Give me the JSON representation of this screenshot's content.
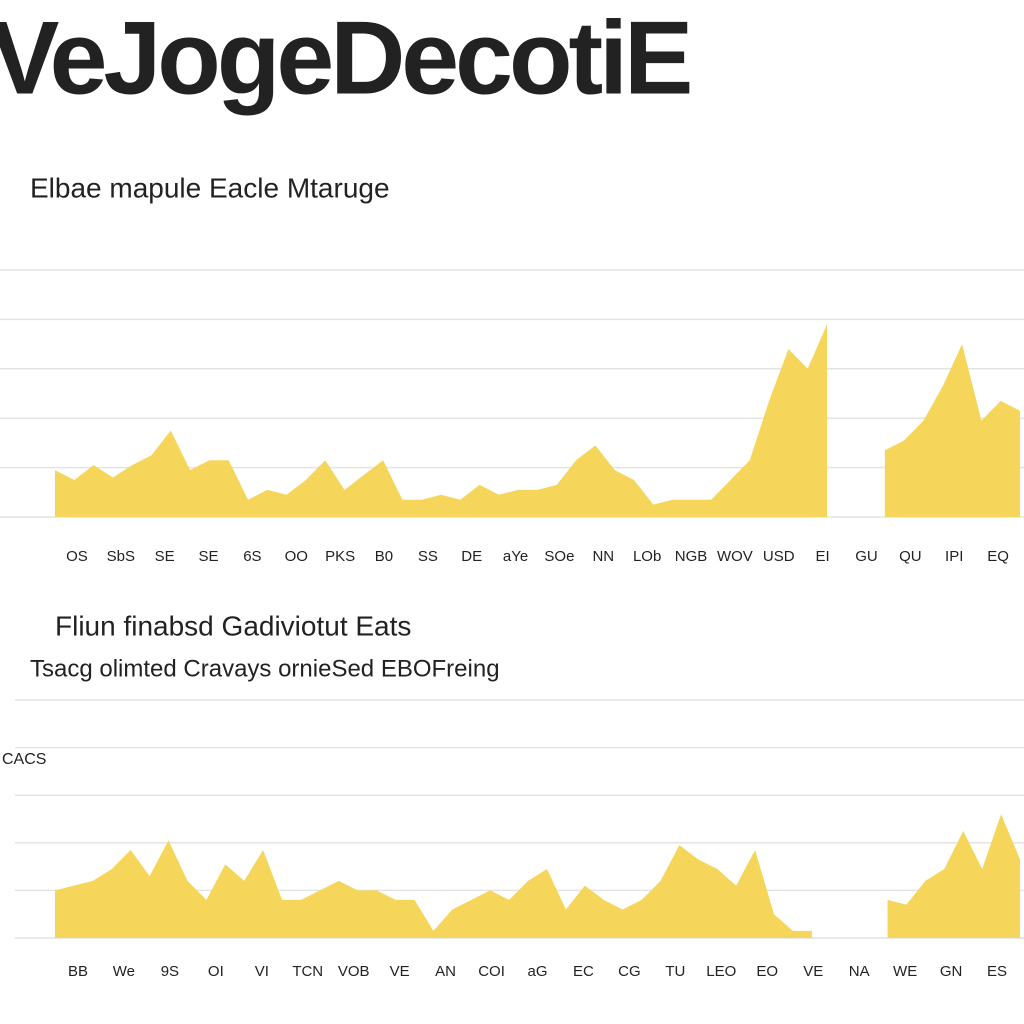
{
  "title": "VeJogeDecotiE",
  "chart_data": [
    {
      "type": "area",
      "title": "Elbae mapule Eacle Mtaruge",
      "color": "#f5d55a",
      "grid": true,
      "ylim": [
        0,
        100
      ],
      "yticks": [
        0,
        20,
        40,
        60,
        80,
        100
      ],
      "values": [
        19,
        15,
        21,
        16,
        21,
        25,
        35,
        19,
        23,
        23,
        7,
        11,
        9,
        15,
        23,
        11,
        17,
        23,
        7,
        7,
        9,
        7,
        13,
        9,
        11,
        11,
        13,
        23,
        29,
        19,
        15,
        5,
        7,
        7,
        7,
        15,
        23,
        47,
        68,
        60,
        78,
        null,
        null,
        27,
        31,
        39,
        53,
        70,
        39,
        47,
        43
      ],
      "x_labels": [
        "OS",
        "SbS",
        "SE",
        "SE",
        "6S",
        "OO",
        "PKS",
        "B0",
        "SS",
        "DE",
        "aYe",
        "SOe",
        "NN",
        "LOb",
        "NGB",
        "WOV",
        "USD",
        "EI",
        "GU",
        "QU",
        "IPI",
        "EQ"
      ]
    },
    {
      "type": "area",
      "title": "Fliun finabsd Gadiviotut Eats",
      "subtitle": "Tsacg olimted Cravays ornieSed EBOFreing",
      "y_label": "CACS",
      "color": "#f5d55a",
      "grid": true,
      "ylim": [
        0,
        100
      ],
      "yticks": [
        0,
        20,
        40,
        60,
        80,
        100
      ],
      "values": [
        20,
        22,
        24,
        29,
        37,
        26,
        41,
        24,
        16,
        31,
        24,
        37,
        16,
        16,
        20,
        24,
        20,
        20,
        16,
        16,
        3,
        12,
        16,
        20,
        16,
        24,
        29,
        12,
        22,
        16,
        12,
        16,
        24,
        39,
        33,
        29,
        22,
        37,
        10,
        3,
        3,
        null,
        null,
        null,
        16,
        14,
        24,
        29,
        45,
        29,
        52,
        33
      ],
      "x_labels": [
        "BB",
        "We",
        "9S",
        "OI",
        "VI",
        "TCN",
        "VOB",
        "VE",
        "AN",
        "COI",
        "aG",
        "EC",
        "CG",
        "TU",
        "LEO",
        "EO",
        "VE",
        "NA",
        "WE",
        "GN",
        "ES"
      ]
    }
  ]
}
